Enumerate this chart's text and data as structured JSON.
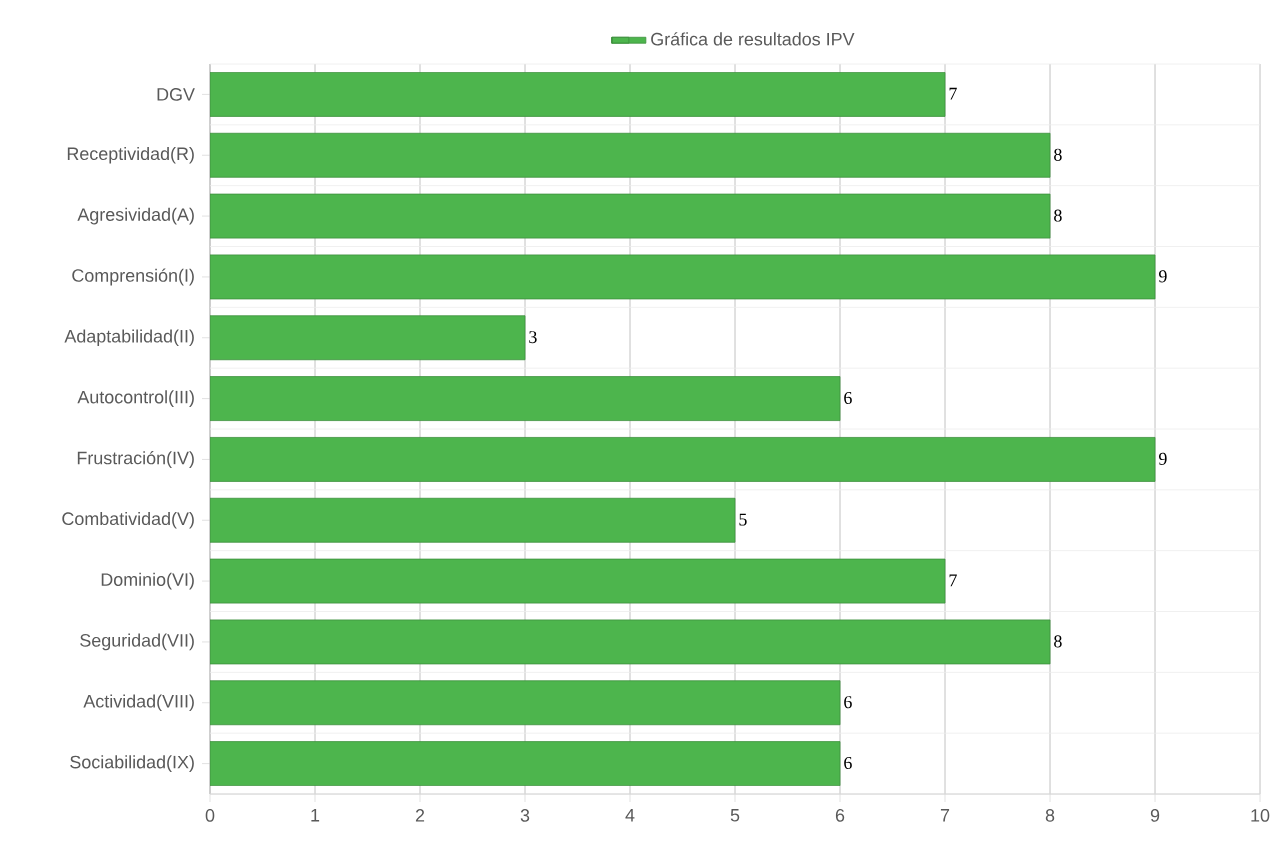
{
  "chart_data": {
    "type": "bar",
    "orientation": "horizontal",
    "categories": [
      "DGV",
      "Receptividad(R)",
      "Agresividad(A)",
      "Comprensión(I)",
      "Adaptabilidad(II)",
      "Autocontrol(III)",
      "Frustración(IV)",
      "Combatividad(V)",
      "Dominio(VI)",
      "Seguridad(VII)",
      "Actividad(VIII)",
      "Sociabilidad(IX)"
    ],
    "series": [
      {
        "name": "Gráfica de resultados IPV",
        "color": "#4db54d",
        "values": [
          7,
          8,
          8,
          9,
          3,
          6,
          9,
          5,
          7,
          8,
          6,
          6
        ]
      }
    ],
    "xlim": [
      0,
      10
    ],
    "xticks": [
      0,
      1,
      2,
      3,
      4,
      5,
      6,
      7,
      8,
      9,
      10
    ],
    "grid": true,
    "legend": "top",
    "data_labels": true
  }
}
